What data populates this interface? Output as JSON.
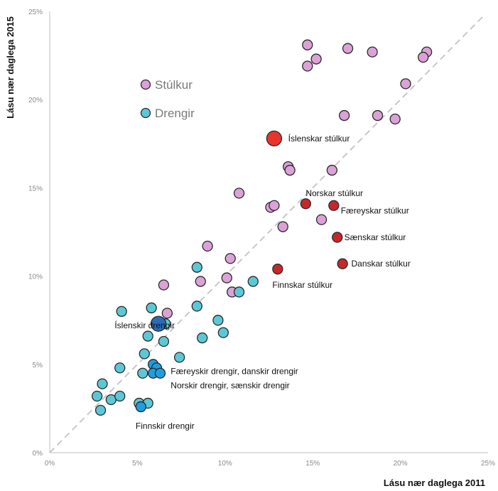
{
  "chart_data": {
    "type": "scatter",
    "title": "",
    "xlabel": "Lásu nær daglega 2011",
    "ylabel": "Lásu nær daglega 2015",
    "xlim": [
      0,
      0.25
    ],
    "ylim": [
      0,
      0.25
    ],
    "x_ticks": [
      "0%",
      "5%",
      "10%",
      "15%",
      "20%",
      "25%"
    ],
    "y_ticks": [
      "0%",
      "5%",
      "10%",
      "15%",
      "20%",
      "25%"
    ],
    "grid": false,
    "diagonal_reference_line": true,
    "legend": {
      "placement": "top-left",
      "entries": [
        {
          "label": "Stúlkur",
          "color": "#dca2d7"
        },
        {
          "label": "Drengir",
          "color": "#5cc8d6"
        }
      ]
    },
    "colors": {
      "girls": "#dca2d7",
      "boys": "#5cc8d6",
      "highlight_iceland_girls": "#e8342c",
      "highlight_nordic_girls": "#c6282a",
      "highlight_iceland_boys": "#2b6cb8",
      "highlight_nordic_boys": "#1e9ee0"
    },
    "series": [
      {
        "name": "Stúlkur",
        "color": "#dca2d7",
        "points": [
          {
            "x": 0.147,
            "y": 0.231
          },
          {
            "x": 0.152,
            "y": 0.223
          },
          {
            "x": 0.147,
            "y": 0.219
          },
          {
            "x": 0.17,
            "y": 0.229
          },
          {
            "x": 0.184,
            "y": 0.227
          },
          {
            "x": 0.215,
            "y": 0.227
          },
          {
            "x": 0.213,
            "y": 0.224
          },
          {
            "x": 0.203,
            "y": 0.209
          },
          {
            "x": 0.168,
            "y": 0.191
          },
          {
            "x": 0.187,
            "y": 0.191
          },
          {
            "x": 0.197,
            "y": 0.189
          },
          {
            "x": 0.136,
            "y": 0.162
          },
          {
            "x": 0.137,
            "y": 0.16
          },
          {
            "x": 0.161,
            "y": 0.16
          },
          {
            "x": 0.108,
            "y": 0.147
          },
          {
            "x": 0.126,
            "y": 0.139
          },
          {
            "x": 0.128,
            "y": 0.14
          },
          {
            "x": 0.155,
            "y": 0.132
          },
          {
            "x": 0.133,
            "y": 0.128
          },
          {
            "x": 0.09,
            "y": 0.117
          },
          {
            "x": 0.103,
            "y": 0.11
          },
          {
            "x": 0.101,
            "y": 0.099
          },
          {
            "x": 0.086,
            "y": 0.097
          },
          {
            "x": 0.104,
            "y": 0.091
          },
          {
            "x": 0.065,
            "y": 0.095
          },
          {
            "x": 0.067,
            "y": 0.079
          }
        ]
      },
      {
        "name": "Drengir",
        "color": "#5cc8d6",
        "points": [
          {
            "x": 0.116,
            "y": 0.097
          },
          {
            "x": 0.108,
            "y": 0.091
          },
          {
            "x": 0.084,
            "y": 0.105
          },
          {
            "x": 0.084,
            "y": 0.083
          },
          {
            "x": 0.096,
            "y": 0.075
          },
          {
            "x": 0.099,
            "y": 0.068
          },
          {
            "x": 0.087,
            "y": 0.065
          },
          {
            "x": 0.058,
            "y": 0.082
          },
          {
            "x": 0.041,
            "y": 0.08
          },
          {
            "x": 0.066,
            "y": 0.073
          },
          {
            "x": 0.056,
            "y": 0.066
          },
          {
            "x": 0.065,
            "y": 0.063
          },
          {
            "x": 0.074,
            "y": 0.054
          },
          {
            "x": 0.054,
            "y": 0.056
          },
          {
            "x": 0.04,
            "y": 0.048
          },
          {
            "x": 0.053,
            "y": 0.045
          },
          {
            "x": 0.03,
            "y": 0.039
          },
          {
            "x": 0.027,
            "y": 0.032
          },
          {
            "x": 0.035,
            "y": 0.03
          },
          {
            "x": 0.04,
            "y": 0.032
          },
          {
            "x": 0.029,
            "y": 0.024
          },
          {
            "x": 0.051,
            "y": 0.028
          },
          {
            "x": 0.056,
            "y": 0.028
          },
          {
            "x": 0.052,
            "y": 0.026
          }
        ]
      }
    ],
    "highlighted": [
      {
        "label": "Íslenskar stúlkur",
        "x": 0.128,
        "y": 0.178,
        "color": "#e8342c",
        "size": "large"
      },
      {
        "label": "Norskar stúlkur",
        "x": 0.146,
        "y": 0.141,
        "color": "#c6282a",
        "size": "normal"
      },
      {
        "label": "Færeyskar stúlkur",
        "x": 0.162,
        "y": 0.14,
        "color": "#c6282a",
        "size": "normal"
      },
      {
        "label": "Sænskar stúlkur",
        "x": 0.164,
        "y": 0.122,
        "color": "#c6282a",
        "size": "normal"
      },
      {
        "label": "Danskar stúlkur",
        "x": 0.167,
        "y": 0.107,
        "color": "#c6282a",
        "size": "normal"
      },
      {
        "label": "Finnskar stúlkur",
        "x": 0.13,
        "y": 0.104,
        "color": "#c6282a",
        "size": "normal"
      },
      {
        "label": "Íslenskir drengir",
        "x": 0.062,
        "y": 0.073,
        "color": "#2b6cb8",
        "size": "large"
      },
      {
        "label": "Færeyskir drengir",
        "x": 0.059,
        "y": 0.05,
        "color": "#1e9ee0",
        "size": "normal"
      },
      {
        "label": "danskir drengir",
        "x": 0.061,
        "y": 0.048,
        "color": "#1e9ee0",
        "size": "normal"
      },
      {
        "label": "Norskir drengir",
        "x": 0.059,
        "y": 0.045,
        "color": "#1e9ee0",
        "size": "normal"
      },
      {
        "label": "sænskir drengir",
        "x": 0.063,
        "y": 0.045,
        "color": "#1e9ee0",
        "size": "normal"
      },
      {
        "label": "Finnskir drengir",
        "x": 0.052,
        "y": 0.026,
        "color": "#1e9ee0",
        "size": "normal"
      }
    ],
    "annotations": [
      {
        "text": "Íslenskar stúlkur",
        "x": 0.136,
        "y": 0.178,
        "anchor": "start"
      },
      {
        "text": "Norskar stúlkur",
        "x": 0.146,
        "y": 0.147,
        "anchor": "start"
      },
      {
        "text": "Færeyskar stúlkur",
        "x": 0.166,
        "y": 0.137,
        "anchor": "start"
      },
      {
        "text": "Sænskar stúlkur",
        "x": 0.168,
        "y": 0.122,
        "anchor": "start"
      },
      {
        "text": "Danskar stúlkur",
        "x": 0.172,
        "y": 0.107,
        "anchor": "start"
      },
      {
        "text": "Finnskar stúlkur",
        "x": 0.127,
        "y": 0.095,
        "anchor": "start"
      },
      {
        "text": "Íslenskir drengir",
        "x": 0.037,
        "y": 0.072,
        "anchor": "start"
      },
      {
        "text": "Færeyskir drengir, danskir drengir",
        "x": 0.069,
        "y": 0.046,
        "anchor": "start"
      },
      {
        "text": "Norskir drengir, sænskir drengir",
        "x": 0.069,
        "y": 0.038,
        "anchor": "start"
      },
      {
        "text": "Finnskir drengir",
        "x": 0.049,
        "y": 0.015,
        "anchor": "start"
      }
    ]
  }
}
